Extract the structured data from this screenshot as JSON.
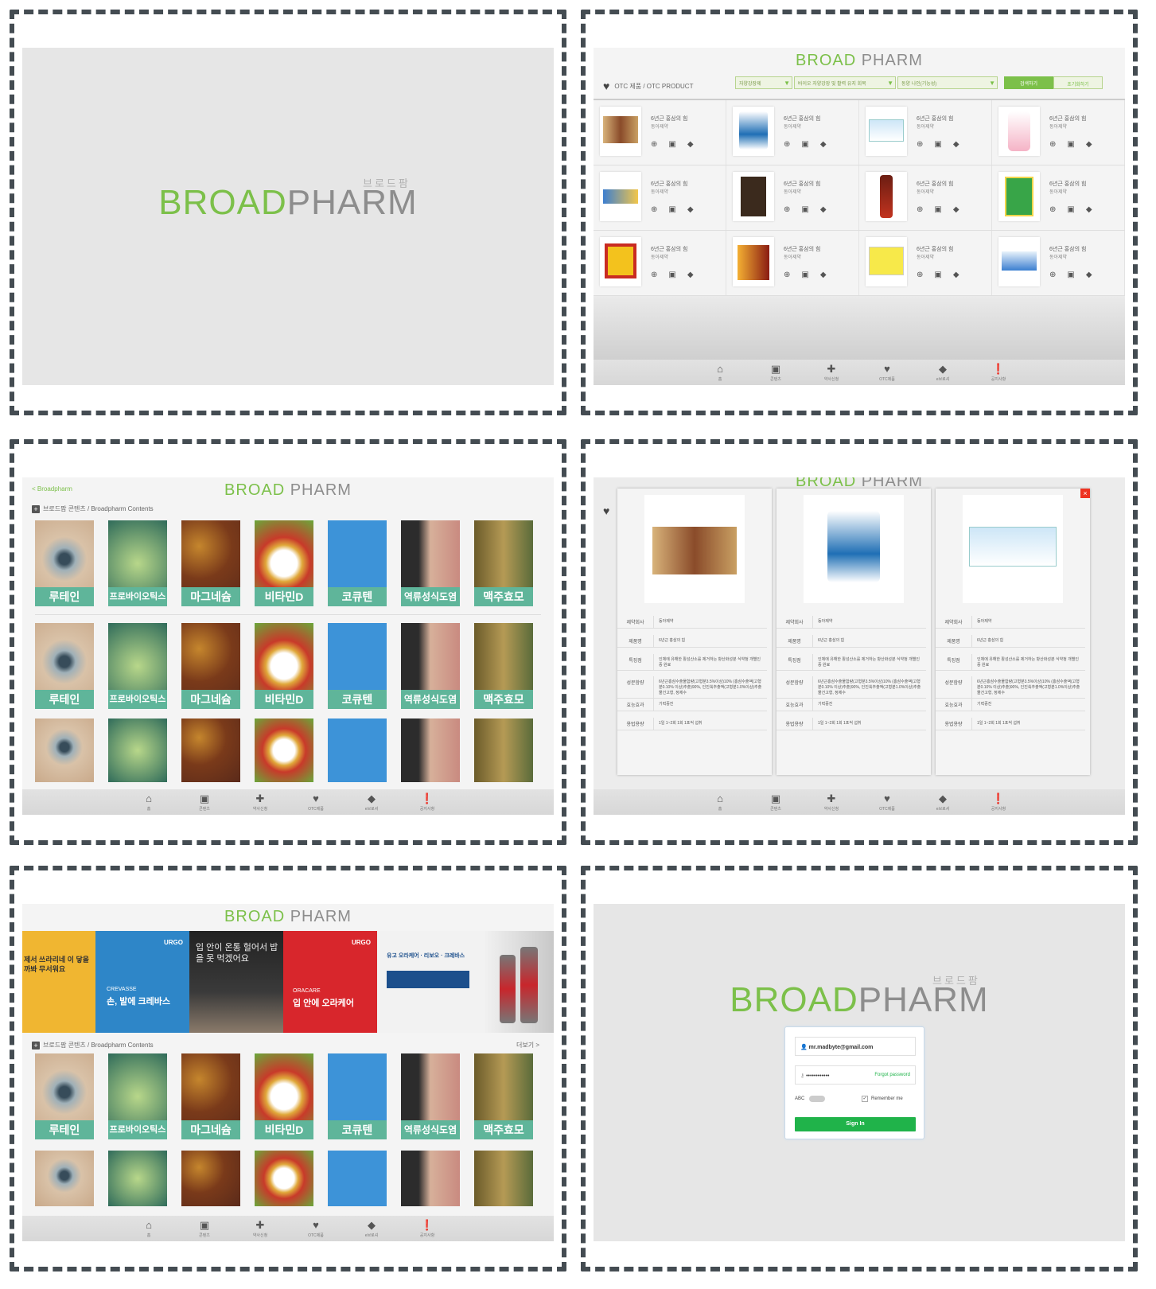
{
  "brand": {
    "green": "BROAD",
    "gray": "PHARM",
    "korean": "브로드팜"
  },
  "colors": {
    "accent": "#7cc04a",
    "caption": "#5fb59a",
    "signin": "#20b34a"
  },
  "bottom_tabs": [
    {
      "icon": "home-icon",
      "label": "홈"
    },
    {
      "icon": "image-icon",
      "label": "콘텐츠"
    },
    {
      "icon": "plus-icon",
      "label": "약사신청"
    },
    {
      "icon": "heart-icon",
      "label": "OTC제품"
    },
    {
      "icon": "pills-icon",
      "label": "e브로셔"
    },
    {
      "icon": "alert-icon",
      "label": "공지사항"
    }
  ],
  "otc": {
    "heading": "OTC 제품 / OTC PRODUCT",
    "filter1": "자양강장제",
    "filter2": "바이오 자양강장 및 활력 유지 회복",
    "filter3": "동양 나인(기능성)",
    "btn_search": "검색하기",
    "btn_reset": "초기화하기",
    "product_name": "6년근 홍삼의 힘",
    "company": "동아제약",
    "actions": [
      "상세보기",
      "광고소",
      "e브로셔"
    ]
  },
  "contents": {
    "back": "Broadpharm",
    "section": "브로드팜 콘텐츠 / Broadpharm Contents",
    "more": "더보기 >",
    "tiles": [
      "루테인",
      "프로바이오틱스",
      "마그네슘",
      "비타민D",
      "코큐텐",
      "역류성식도염",
      "맥주효모"
    ]
  },
  "detail": {
    "labels": [
      "제약회사",
      "제품명",
      "특징점",
      "성분함량",
      "효능효과",
      "용법용량"
    ],
    "company": "동아제약",
    "product": "6년근 홍삼의 힘",
    "feature": "인체에 유해한 활성산소를 제거하는 항산화성분 식약청 개별인증 원료",
    "ingredient": "6년근홍삼수출물함량(고형분3.5%이상)10% (홍삼수출액(고형분0.10% 이상)추출)90%, 인진쑥추출액(고형분1.0%이상)추출 물건고형, 정제수",
    "effect": "기력증진",
    "usage": "1일 1~2회 1회 1포씩 섭취"
  },
  "banners": {
    "b1": "제서 쓰라리네 이 닿을까봐 무서워요",
    "b2_brand": "URGO",
    "b2_sub": "CREVASSE",
    "b2_title": "손, 발에 크레바스",
    "b3": "입 안이 온통 헐어서 밥을 못 먹겠어요",
    "b4_brand": "URGO",
    "b4_sub": "ORACARE",
    "b4_title": "입 안에 오라케어",
    "b5_title": "유고 오라케어 · 리보오 · 크레바스"
  },
  "login": {
    "email": "mr.madbyte@gmail.com",
    "password": "••••••••••••",
    "forgot": "Forgot password",
    "abc": "ABC",
    "remember": "Remember me",
    "signin": "Sign In"
  }
}
